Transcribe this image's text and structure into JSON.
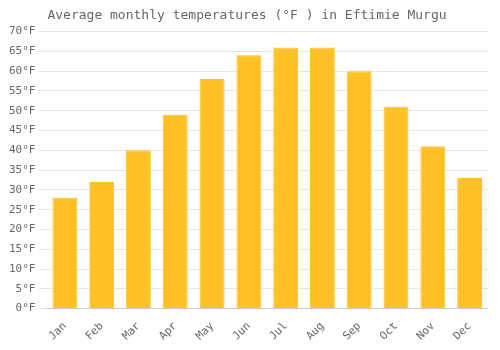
{
  "chart_data": {
    "type": "bar",
    "title": "Average monthly temperatures (°F ) in Eftimie Murgu",
    "categories": [
      "Jan",
      "Feb",
      "Mar",
      "Apr",
      "May",
      "Jun",
      "Jul",
      "Aug",
      "Sep",
      "Oct",
      "Nov",
      "Dec"
    ],
    "values": [
      28,
      32,
      40,
      49,
      58,
      64,
      66,
      66,
      60,
      51,
      41,
      33
    ],
    "color": "#FFC125",
    "ylim": [
      0,
      70
    ],
    "yticks": [
      {
        "value": 0,
        "label": "0°F"
      },
      {
        "value": 5,
        "label": "5°F"
      },
      {
        "value": 10,
        "label": "10°F"
      },
      {
        "value": 15,
        "label": "15°F"
      },
      {
        "value": 20,
        "label": "20°F"
      },
      {
        "value": 25,
        "label": "25°F"
      },
      {
        "value": 30,
        "label": "30°F"
      },
      {
        "value": 35,
        "label": "35°F"
      },
      {
        "value": 40,
        "label": "40°F"
      },
      {
        "value": 45,
        "label": "45°F"
      },
      {
        "value": 50,
        "label": "50°F"
      },
      {
        "value": 55,
        "label": "55°F"
      },
      {
        "value": 60,
        "label": "60°F"
      },
      {
        "value": 65,
        "label": "65°F"
      },
      {
        "value": 70,
        "label": "70°F"
      }
    ],
    "grid": true
  }
}
